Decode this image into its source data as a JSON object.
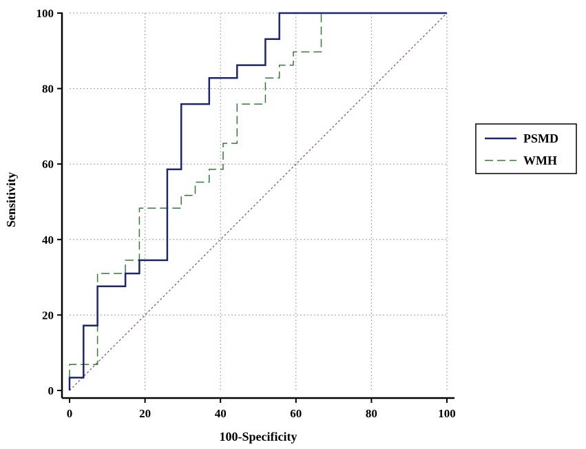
{
  "chart_data": {
    "type": "line",
    "title": "",
    "xlabel": "100-Specificity",
    "ylabel": "Sensitivity",
    "xlim": [
      0,
      100
    ],
    "ylim": [
      0,
      100
    ],
    "x_ticks": [
      "0",
      "20",
      "40",
      "60",
      "80",
      "100"
    ],
    "y_ticks": [
      "0",
      "20",
      "40",
      "60",
      "80",
      "100"
    ],
    "grid": true,
    "legend_position": "right",
    "series": [
      {
        "name": "PSMD",
        "style": "solid",
        "color": "#1a237e",
        "points": [
          [
            0,
            0
          ],
          [
            0,
            3.4
          ],
          [
            3.7,
            3.4
          ],
          [
            3.7,
            17.2
          ],
          [
            7.4,
            17.2
          ],
          [
            7.4,
            27.6
          ],
          [
            14.8,
            27.6
          ],
          [
            14.8,
            31.0
          ],
          [
            18.5,
            31.0
          ],
          [
            18.5,
            34.5
          ],
          [
            25.9,
            34.5
          ],
          [
            25.9,
            58.6
          ],
          [
            29.6,
            58.6
          ],
          [
            29.6,
            75.9
          ],
          [
            37.0,
            75.9
          ],
          [
            37.0,
            82.8
          ],
          [
            44.4,
            82.8
          ],
          [
            44.4,
            86.2
          ],
          [
            51.9,
            86.2
          ],
          [
            51.9,
            93.1
          ],
          [
            55.6,
            93.1
          ],
          [
            55.6,
            100
          ],
          [
            100,
            100
          ]
        ]
      },
      {
        "name": "WMH",
        "style": "dashed",
        "color": "#2e7d32",
        "points": [
          [
            0,
            0
          ],
          [
            0,
            6.9
          ],
          [
            7.4,
            6.9
          ],
          [
            7.4,
            31.0
          ],
          [
            14.8,
            31.0
          ],
          [
            14.8,
            34.5
          ],
          [
            18.5,
            34.5
          ],
          [
            18.5,
            48.3
          ],
          [
            29.6,
            48.3
          ],
          [
            29.6,
            51.7
          ],
          [
            33.3,
            51.7
          ],
          [
            33.3,
            55.2
          ],
          [
            37.0,
            55.2
          ],
          [
            37.0,
            58.6
          ],
          [
            40.7,
            58.6
          ],
          [
            40.7,
            65.5
          ],
          [
            44.4,
            65.5
          ],
          [
            44.4,
            75.9
          ],
          [
            51.9,
            75.9
          ],
          [
            51.9,
            82.8
          ],
          [
            55.6,
            82.8
          ],
          [
            55.6,
            86.2
          ],
          [
            59.3,
            86.2
          ],
          [
            59.3,
            89.7
          ],
          [
            66.7,
            89.7
          ],
          [
            66.7,
            100
          ],
          [
            100,
            100
          ]
        ]
      },
      {
        "name": "",
        "style": "dotted",
        "color": "#8d4a4a",
        "points": [
          [
            0,
            0
          ],
          [
            100,
            100
          ]
        ]
      }
    ]
  }
}
